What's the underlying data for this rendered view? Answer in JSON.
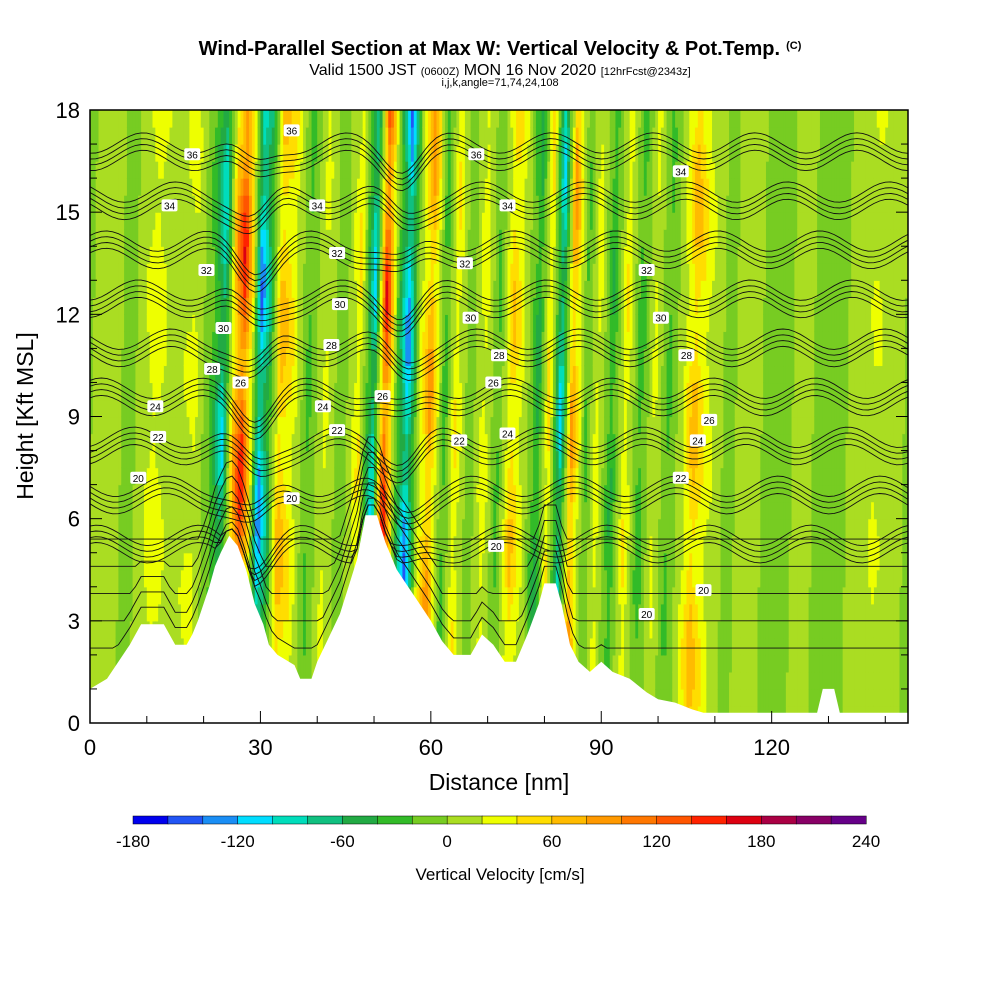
{
  "title": {
    "main": "Wind-Parallel Section at Max W: Vertical Velocity & Pot.Temp.",
    "mark": "(C)"
  },
  "subtitle": {
    "valid_a": "Valid 1500 JST",
    "valid_b": "(0600Z)",
    "valid_c": "MON 16 Nov 2020",
    "valid_d": "[12hrFcst@2343z]",
    "indices": "i,j,k,angle=71,74,24,108"
  },
  "chart_data": {
    "type": "heatmap",
    "xlabel": "Distance [nm]",
    "ylabel": "Height [Kft MSL]",
    "xlim": [
      0,
      144
    ],
    "ylim": [
      0,
      18
    ],
    "x_ticks": [
      0,
      30,
      60,
      90,
      120
    ],
    "y_ticks": [
      0,
      3,
      6,
      9,
      12,
      15,
      18
    ],
    "colorbar": {
      "label": "Vertical Velocity [cm/s]",
      "min": -180,
      "max": 240,
      "step": 20,
      "tick_labels": [
        "-180",
        "-120",
        "-60",
        "0",
        "60",
        "120",
        "180",
        "240"
      ],
      "tick_values": [
        -180,
        -120,
        -60,
        0,
        60,
        120,
        180,
        240
      ],
      "colors": [
        "#0000ee",
        "#2255f5",
        "#1a8ef5",
        "#00ddff",
        "#00ddbb",
        "#10c080",
        "#22aa44",
        "#32bb28",
        "#77cc22",
        "#aadd22",
        "#eeff00",
        "#ffdd00",
        "#ffbb00",
        "#ff9900",
        "#ff7700",
        "#ff5500",
        "#ff2200",
        "#dd0011",
        "#aa0044",
        "#880066",
        "#660088"
      ]
    },
    "columns": [
      {
        "x": 0,
        "w": 20
      },
      {
        "x": 4,
        "w": 5
      },
      {
        "x": 7,
        "w": -8
      },
      {
        "x": 11,
        "w": 40
      },
      {
        "x": 14,
        "w": 10
      },
      {
        "x": 18,
        "w": 30
      },
      {
        "x": 21,
        "w": -30
      },
      {
        "x": 23,
        "w": -110
      },
      {
        "x": 25,
        "w": 90
      },
      {
        "x": 26.5,
        "w": 170
      },
      {
        "x": 28,
        "w": 40
      },
      {
        "x": 29.5,
        "w": -150
      },
      {
        "x": 31,
        "w": -70
      },
      {
        "x": 33,
        "w": 80
      },
      {
        "x": 35,
        "w": 50
      },
      {
        "x": 38,
        "w": -30
      },
      {
        "x": 41,
        "w": 30
      },
      {
        "x": 44,
        "w": -20
      },
      {
        "x": 47,
        "w": 50
      },
      {
        "x": 49.5,
        "w": -120
      },
      {
        "x": 51.5,
        "w": 175
      },
      {
        "x": 53.5,
        "w": -20
      },
      {
        "x": 55.5,
        "w": -150
      },
      {
        "x": 57.5,
        "w": 20
      },
      {
        "x": 59.5,
        "w": 100
      },
      {
        "x": 62,
        "w": -40
      },
      {
        "x": 64,
        "w": 50
      },
      {
        "x": 66.5,
        "w": -20
      },
      {
        "x": 69,
        "w": 40
      },
      {
        "x": 71.5,
        "w": -30
      },
      {
        "x": 74,
        "w": 70
      },
      {
        "x": 76.5,
        "w": 10
      },
      {
        "x": 78.5,
        "w": -60
      },
      {
        "x": 80.5,
        "w": 60
      },
      {
        "x": 82.5,
        "w": -120
      },
      {
        "x": 84.5,
        "w": 100
      },
      {
        "x": 87,
        "w": -30
      },
      {
        "x": 89,
        "w": 40
      },
      {
        "x": 91.5,
        "w": -50
      },
      {
        "x": 94,
        "w": 50
      },
      {
        "x": 96.5,
        "w": -40
      },
      {
        "x": 99,
        "w": 30
      },
      {
        "x": 101.5,
        "w": -30
      },
      {
        "x": 104,
        "w": 20
      },
      {
        "x": 106,
        "w": 80
      },
      {
        "x": 108.5,
        "w": 30
      },
      {
        "x": 112,
        "w": -10
      },
      {
        "x": 116,
        "w": 20
      },
      {
        "x": 120,
        "w": -20
      },
      {
        "x": 125,
        "w": 10
      },
      {
        "x": 130,
        "w": -15
      },
      {
        "x": 134,
        "w": 5
      },
      {
        "x": 138,
        "w": 25
      },
      {
        "x": 144,
        "w": -5
      }
    ],
    "terrain": [
      [
        0,
        1
      ],
      [
        3,
        1.3
      ],
      [
        5,
        1.8
      ],
      [
        7,
        2.3
      ],
      [
        9,
        2.9
      ],
      [
        13,
        2.9
      ],
      [
        14,
        2.6
      ],
      [
        15,
        2.3
      ],
      [
        17,
        2.3
      ],
      [
        18,
        2.6
      ],
      [
        19,
        3.0
      ],
      [
        20,
        3.5
      ],
      [
        21,
        4.0
      ],
      [
        22,
        4.6
      ],
      [
        23,
        5.0
      ],
      [
        24.5,
        5.5
      ],
      [
        26,
        5.2
      ],
      [
        27.5,
        4.5
      ],
      [
        29,
        3.5
      ],
      [
        30.5,
        2.9
      ],
      [
        31.5,
        2.3
      ],
      [
        33,
        2.0
      ],
      [
        36,
        1.7
      ],
      [
        37,
        1.3
      ],
      [
        39,
        1.3
      ],
      [
        40,
        1.8
      ],
      [
        42,
        2.5
      ],
      [
        44,
        3.2
      ],
      [
        45.5,
        4.0
      ],
      [
        47,
        4.8
      ],
      [
        48.5,
        6.1
      ],
      [
        50.5,
        6.1
      ],
      [
        52,
        5.3
      ],
      [
        54,
        4.5
      ],
      [
        56,
        4.0
      ],
      [
        58,
        3.5
      ],
      [
        60,
        3.0
      ],
      [
        62,
        2.4
      ],
      [
        64,
        2.0
      ],
      [
        67,
        2.0
      ],
      [
        69,
        2.6
      ],
      [
        71,
        2.3
      ],
      [
        73,
        1.8
      ],
      [
        75,
        1.8
      ],
      [
        77,
        2.6
      ],
      [
        79,
        3.5
      ],
      [
        80,
        4.1
      ],
      [
        82,
        4.1
      ],
      [
        83,
        3.5
      ],
      [
        84.5,
        2.3
      ],
      [
        86,
        1.8
      ],
      [
        88,
        1.5
      ],
      [
        90,
        1.8
      ],
      [
        92,
        1.5
      ],
      [
        95,
        1.3
      ],
      [
        98,
        0.9
      ],
      [
        100,
        0.7
      ],
      [
        103,
        0.6
      ],
      [
        106,
        0.4
      ],
      [
        108,
        0.3
      ],
      [
        128,
        0.3
      ],
      [
        129,
        1.0
      ],
      [
        131,
        1.0
      ],
      [
        132,
        0.3
      ],
      [
        144,
        0.3
      ]
    ],
    "theta_levels": [
      20,
      22,
      24,
      26,
      28,
      30,
      32,
      34,
      36
    ],
    "contour_labels": [
      {
        "x": 35.5,
        "y": 17.4,
        "text": "36"
      },
      {
        "x": 18,
        "y": 16.7,
        "text": "36"
      },
      {
        "x": 68,
        "y": 16.7,
        "text": "36"
      },
      {
        "x": 104,
        "y": 16.2,
        "text": "34"
      },
      {
        "x": 14,
        "y": 15.2,
        "text": "34"
      },
      {
        "x": 40,
        "y": 15.2,
        "text": "34"
      },
      {
        "x": 73.5,
        "y": 15.2,
        "text": "34"
      },
      {
        "x": 20.5,
        "y": 13.3,
        "text": "32"
      },
      {
        "x": 43.5,
        "y": 13.8,
        "text": "32"
      },
      {
        "x": 66,
        "y": 13.5,
        "text": "32"
      },
      {
        "x": 98,
        "y": 13.3,
        "text": "32"
      },
      {
        "x": 44,
        "y": 12.3,
        "text": "30"
      },
      {
        "x": 67,
        "y": 11.9,
        "text": "30"
      },
      {
        "x": 100.5,
        "y": 11.9,
        "text": "30"
      },
      {
        "x": 23.5,
        "y": 11.6,
        "text": "30"
      },
      {
        "x": 42.5,
        "y": 11.1,
        "text": "28"
      },
      {
        "x": 72,
        "y": 10.8,
        "text": "28"
      },
      {
        "x": 105,
        "y": 10.8,
        "text": "28"
      },
      {
        "x": 21.5,
        "y": 10.4,
        "text": "28"
      },
      {
        "x": 26.5,
        "y": 10.0,
        "text": "26"
      },
      {
        "x": 71,
        "y": 10.0,
        "text": "26"
      },
      {
        "x": 11.5,
        "y": 9.3,
        "text": "24"
      },
      {
        "x": 41,
        "y": 9.3,
        "text": "24"
      },
      {
        "x": 51.5,
        "y": 9.6,
        "text": "26"
      },
      {
        "x": 109,
        "y": 8.9,
        "text": "26"
      },
      {
        "x": 12,
        "y": 8.4,
        "text": "22"
      },
      {
        "x": 43.5,
        "y": 8.6,
        "text": "22"
      },
      {
        "x": 65,
        "y": 8.3,
        "text": "22"
      },
      {
        "x": 73.5,
        "y": 8.5,
        "text": "24"
      },
      {
        "x": 107,
        "y": 8.3,
        "text": "24"
      },
      {
        "x": 8.5,
        "y": 7.2,
        "text": "20"
      },
      {
        "x": 104,
        "y": 7.2,
        "text": "22"
      },
      {
        "x": 35.5,
        "y": 6.6,
        "text": "20"
      },
      {
        "x": 71.5,
        "y": 5.2,
        "text": "20"
      },
      {
        "x": 98,
        "y": 3.2,
        "text": "20"
      },
      {
        "x": 108,
        "y": 3.9,
        "text": "20"
      }
    ]
  }
}
